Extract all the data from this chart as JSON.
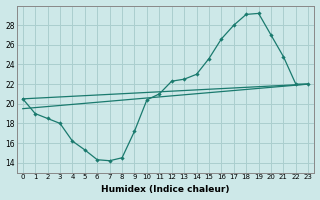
{
  "xlabel": "Humidex (Indice chaleur)",
  "xlim": [
    -0.5,
    23.5
  ],
  "ylim": [
    13,
    30
  ],
  "yticks": [
    14,
    16,
    18,
    20,
    22,
    24,
    26,
    28
  ],
  "xticks": [
    0,
    1,
    2,
    3,
    4,
    5,
    6,
    7,
    8,
    9,
    10,
    11,
    12,
    13,
    14,
    15,
    16,
    17,
    18,
    19,
    20,
    21,
    22,
    23
  ],
  "bg_color": "#cde8e8",
  "grid_color": "#aacece",
  "line_color": "#1a7a6e",
  "series": [
    {
      "x": [
        0,
        1,
        2,
        3,
        4,
        5,
        6,
        7,
        8,
        9,
        10,
        11,
        12,
        13,
        14,
        15,
        16,
        17,
        18,
        19,
        20,
        21,
        22,
        23
      ],
      "y": [
        20.5,
        19.0,
        18.5,
        18.0,
        16.2,
        15.3,
        14.3,
        14.2,
        14.5,
        17.2,
        20.4,
        21.0,
        22.3,
        22.5,
        23.0,
        24.6,
        26.6,
        28.0,
        29.1,
        29.2,
        27.0,
        24.8,
        22.0,
        22.0
      ],
      "marker": true
    },
    {
      "x": [
        0,
        23
      ],
      "y": [
        19.5,
        22.0
      ],
      "marker": false
    },
    {
      "x": [
        0,
        23
      ],
      "y": [
        20.5,
        22.0
      ],
      "marker": false
    }
  ]
}
